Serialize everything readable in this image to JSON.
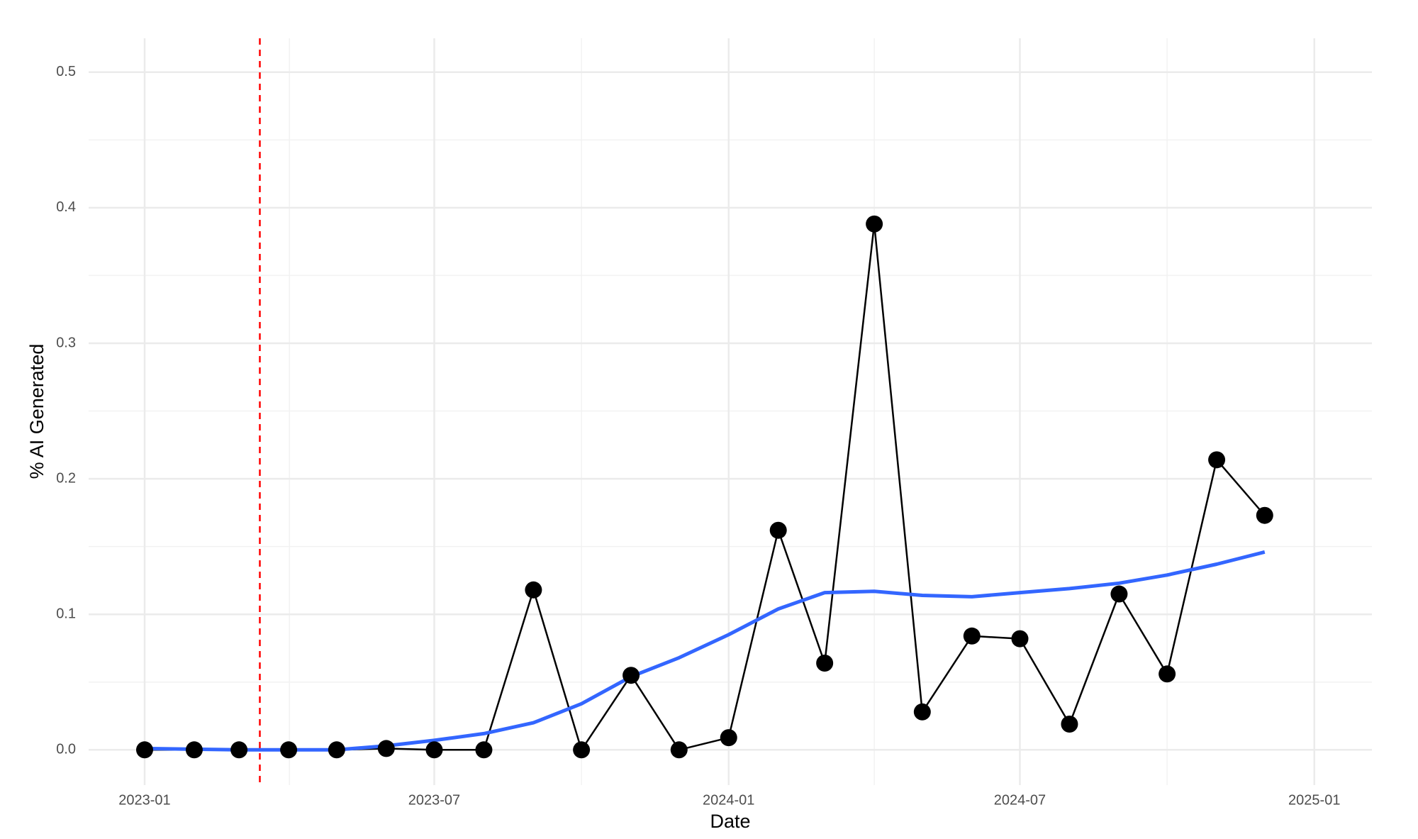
{
  "chart_data": {
    "type": "line",
    "x_label": "Date",
    "y_label": "% AI Generated",
    "x": [
      "2023-01",
      "2023-02",
      "2023-03",
      "2023-04",
      "2023-05",
      "2023-06",
      "2023-07",
      "2023-08",
      "2023-09",
      "2023-10",
      "2023-11",
      "2023-12",
      "2024-01",
      "2024-02",
      "2024-03",
      "2024-04",
      "2024-05",
      "2024-06",
      "2024-07",
      "2024-08",
      "2024-09",
      "2024-10",
      "2024-11",
      "2024-12"
    ],
    "series": [
      {
        "color": "#000000",
        "markers": true,
        "values": [
          0,
          0,
          0,
          0,
          0,
          0.001,
          0,
          0,
          0.118,
          0,
          0.055,
          0,
          0.009,
          0.162,
          0.064,
          0.388,
          0.028,
          0.084,
          0.082,
          0.019,
          0.115,
          0.056,
          0.214,
          0.173
        ]
      },
      {
        "color": "#3366ff",
        "smooth": true,
        "values": [
          0.001,
          0.0005,
          0,
          0,
          0,
          0.003,
          0.007,
          0.012,
          0.02,
          0.034,
          0.054,
          0.068,
          0.085,
          0.104,
          0.116,
          0.117,
          0.114,
          0.113,
          0.116,
          0.119,
          0.123,
          0.129,
          0.137,
          0.146
        ]
      }
    ],
    "vline": {
      "x": "2023-03-14",
      "color": "#ff0000",
      "dash": true
    },
    "xlim": [
      "2022-11-27",
      "2025-02-06"
    ],
    "xticks": [
      "2023-01",
      "2023-07",
      "2024-01",
      "2024-07",
      "2025-01"
    ],
    "ylim": [
      -0.026,
      0.525
    ],
    "yticks": [
      {
        "value": 0,
        "label": "0.0"
      },
      0.1,
      0.2,
      0.3,
      0.4,
      0.5
    ],
    "grid": true
  }
}
